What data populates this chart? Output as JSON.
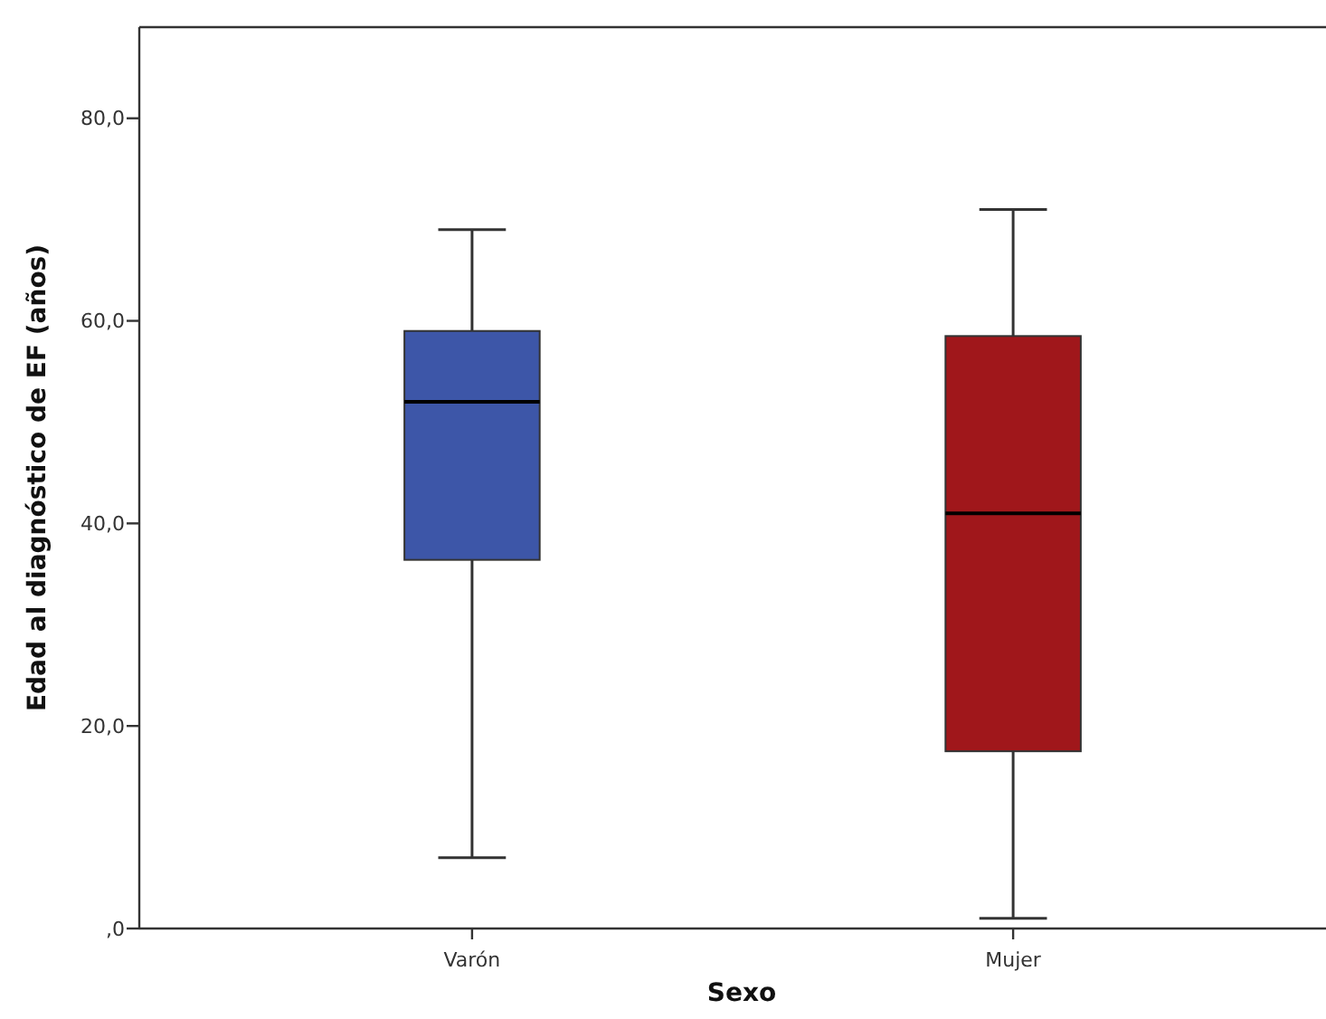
{
  "chart_data": {
    "type": "box",
    "xlabel": "Sexo",
    "ylabel": "Edad al diagnóstico de EF (años)",
    "categories": [
      "Varón",
      "Mujer"
    ],
    "boxes": [
      {
        "low": 7,
        "q1": 36.4,
        "median": 52,
        "q3": 59,
        "high": 69
      },
      {
        "low": 1,
        "q1": 17.5,
        "median": 41,
        "q3": 58.5,
        "high": 71
      }
    ],
    "colors": [
      "#3d56a8",
      "#a0171b"
    ],
    "ylim": [
      0,
      89
    ],
    "yticks": [
      {
        "value": 0,
        "label": ",0"
      },
      {
        "value": 20,
        "label": "20,0"
      },
      {
        "value": 40,
        "label": "40,0"
      },
      {
        "value": 60,
        "label": "60,0"
      },
      {
        "value": 80,
        "label": "80,0"
      }
    ]
  }
}
